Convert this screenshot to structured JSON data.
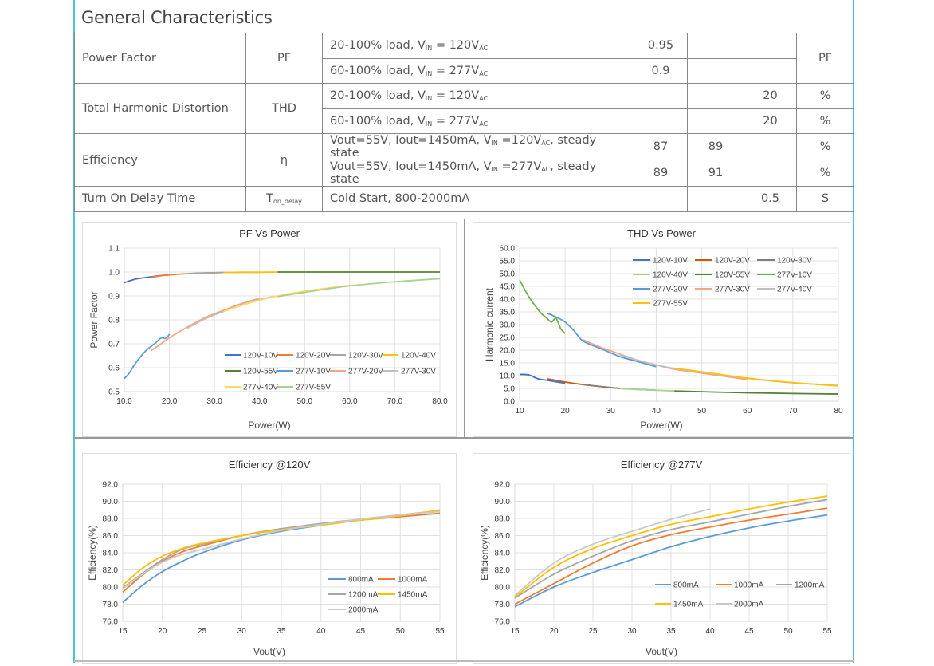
{
  "section_title": "General Characteristics",
  "table": {
    "rows": [
      {
        "param": "Power Factor",
        "symbol": "PF",
        "conditions": [
          {
            "pre": "20-100% load, V",
            "sub1": "IN",
            "mid": " = 120V",
            "sub2": "AC",
            "post": "",
            "min": "0.95",
            "typ": "",
            "max": ""
          },
          {
            "pre": "60-100% load, V",
            "sub1": "IN",
            "mid": " = 277V",
            "sub2": "AC",
            "post": "",
            "min": "0.9",
            "typ": "",
            "max": ""
          }
        ],
        "unit": "PF"
      },
      {
        "param": "Total Harmonic Distortion",
        "symbol": "THD",
        "conditions": [
          {
            "pre": "20-100% load, V",
            "sub1": "IN",
            "mid": " = 120V",
            "sub2": "AC",
            "post": "",
            "min": "",
            "typ": "",
            "max": "20",
            "unit": "%"
          },
          {
            "pre": "60-100% load, V",
            "sub1": "IN",
            "mid": " = 277V",
            "sub2": "AC",
            "post": "",
            "min": "",
            "typ": "",
            "max": "20",
            "unit": "%"
          }
        ]
      },
      {
        "param": "Efficiency",
        "symbol": "η",
        "conditions": [
          {
            "pre": "Vout=55V, Iout=1450mA, V",
            "sub1": "IN",
            "mid": " =120V",
            "sub2": "AC",
            "post": ", steady state",
            "min": "87",
            "typ": "89",
            "max": "",
            "unit": "%"
          },
          {
            "pre": "Vout=55V, Iout=1450mA, V",
            "sub1": "IN",
            "mid": " =277V",
            "sub2": "AC",
            "post": ", steady state",
            "min": "89",
            "typ": "91",
            "max": "",
            "unit": "%"
          }
        ]
      },
      {
        "param": "Turn On Delay Time",
        "symbol": "T",
        "symbol_sub": "on_delay",
        "conditions": [
          {
            "pre": "Cold Start, 800-2000mA",
            "sub1": "",
            "mid": "",
            "sub2": "",
            "post": "",
            "min": "",
            "typ": "",
            "max": "0.5",
            "unit": "S"
          }
        ]
      }
    ]
  },
  "chart_data": [
    {
      "type": "line",
      "title": "PF Vs Power",
      "xlabel": "Power(W)",
      "ylabel": "Power Factor",
      "xlim": [
        10,
        80
      ],
      "ylim": [
        0.5,
        1.1
      ],
      "xticks": [
        10,
        20,
        30,
        40,
        50,
        60,
        70,
        80
      ],
      "xtick_fmt": 1,
      "yticks": [
        0.5,
        0.6,
        0.7,
        0.8,
        0.9,
        1.0,
        1.1
      ],
      "ytick_fmt": 1,
      "grid": true,
      "legend": "bottom-right",
      "legend_cols": 4,
      "series": [
        {
          "name": "120V-10V",
          "color": "#4472c4",
          "x": [
            10,
            12,
            14,
            16,
            18,
            20
          ],
          "y": [
            0.955,
            0.968,
            0.975,
            0.98,
            0.985,
            0.988
          ]
        },
        {
          "name": "120V-20V",
          "color": "#ed7d31",
          "x": [
            16,
            18,
            20,
            24,
            28,
            32
          ],
          "y": [
            0.978,
            0.984,
            0.988,
            0.993,
            0.996,
            0.998
          ]
        },
        {
          "name": "120V-30V",
          "color": "#a5a5a5",
          "x": [
            24,
            28,
            32,
            36,
            40
          ],
          "y": [
            0.993,
            0.996,
            0.998,
            0.999,
            0.999
          ]
        },
        {
          "name": "120V-40V",
          "color": "#ffc000",
          "x": [
            32,
            36,
            40,
            44
          ],
          "y": [
            0.998,
            0.999,
            0.999,
            1.0
          ]
        },
        {
          "name": "120V-55V",
          "color": "#548235",
          "x": [
            44,
            50,
            60,
            70,
            80
          ],
          "y": [
            1.0,
            1.0,
            1.0,
            1.0,
            1.0
          ]
        },
        {
          "name": "277V-10V",
          "color": "#5b9bd5",
          "x": [
            10,
            11,
            12,
            13,
            14,
            15,
            16,
            17,
            18,
            18.5,
            19,
            19.5,
            20
          ],
          "y": [
            0.555,
            0.575,
            0.605,
            0.632,
            0.655,
            0.675,
            0.69,
            0.705,
            0.722,
            0.725,
            0.722,
            0.728,
            0.74
          ]
        },
        {
          "name": "277V-20V",
          "color": "#f4a582",
          "x": [
            16,
            18,
            20,
            24,
            28,
            32,
            36,
            40
          ],
          "y": [
            0.672,
            0.698,
            0.725,
            0.77,
            0.81,
            0.84,
            0.868,
            0.89
          ]
        },
        {
          "name": "277V-30V",
          "color": "#bfbfbf",
          "x": [
            24,
            28,
            32,
            36,
            40,
            44
          ],
          "y": [
            0.765,
            0.805,
            0.835,
            0.862,
            0.885,
            0.9
          ]
        },
        {
          "name": "277V-40V",
          "color": "#ffd966",
          "x": [
            32,
            36,
            40,
            44,
            50,
            56,
            60
          ],
          "y": [
            0.835,
            0.86,
            0.882,
            0.9,
            0.92,
            0.935,
            0.945
          ]
        },
        {
          "name": "277V-55V",
          "color": "#a9d18e",
          "x": [
            44,
            50,
            56,
            60,
            66,
            72,
            80
          ],
          "y": [
            0.897,
            0.915,
            0.932,
            0.942,
            0.953,
            0.962,
            0.972
          ]
        }
      ]
    },
    {
      "type": "line",
      "title": "THD Vs Power",
      "xlabel": "Power(W)",
      "ylabel": "Harmonic current",
      "xlim": [
        10,
        80
      ],
      "ylim": [
        0,
        60
      ],
      "xticks": [
        10,
        20,
        30,
        40,
        50,
        60,
        70,
        80
      ],
      "xtick_fmt": 0,
      "yticks": [
        0,
        5,
        10,
        15,
        20,
        25,
        30,
        35,
        40,
        45,
        50,
        55,
        60
      ],
      "ytick_fmt": 1,
      "grid": true,
      "legend": "top-right",
      "legend_cols": 3,
      "series": [
        {
          "name": "120V-10V",
          "color": "#4472c4",
          "x": [
            10,
            12,
            14,
            16,
            18,
            20
          ],
          "y": [
            10.5,
            10.3,
            8.8,
            8.2,
            7.6,
            7.0
          ]
        },
        {
          "name": "120V-20V",
          "color": "#c55a11",
          "x": [
            16,
            18,
            20,
            24,
            28,
            32
          ],
          "y": [
            8.8,
            8.2,
            7.5,
            6.5,
            5.7,
            5.0
          ]
        },
        {
          "name": "120V-30V",
          "color": "#7f7f7f",
          "x": [
            24,
            28,
            32,
            36,
            40
          ],
          "y": [
            6.5,
            5.7,
            5.0,
            4.6,
            4.3
          ]
        },
        {
          "name": "120V-40V",
          "color": "#a9d18e",
          "x": [
            32,
            36,
            40,
            44
          ],
          "y": [
            5.0,
            4.6,
            4.3,
            4.0
          ]
        },
        {
          "name": "120V-55V",
          "color": "#548235",
          "x": [
            44,
            50,
            60,
            70,
            80
          ],
          "y": [
            4.0,
            3.7,
            3.3,
            3.0,
            2.8
          ]
        },
        {
          "name": "277V-10V",
          "color": "#70ad47",
          "x": [
            10,
            12,
            14,
            15,
            16,
            17,
            18,
            19,
            20
          ],
          "y": [
            47.5,
            41,
            36,
            34,
            32.5,
            31,
            32.5,
            28.5,
            26.5
          ]
        },
        {
          "name": "277V-20V",
          "color": "#5b9bd5",
          "x": [
            16,
            18,
            20,
            22,
            24,
            28,
            32,
            36,
            40
          ],
          "y": [
            34.5,
            33,
            31,
            27.5,
            23.5,
            20.5,
            17.5,
            15.5,
            13.5
          ]
        },
        {
          "name": "277V-30V",
          "color": "#f4a582",
          "x": [
            24,
            28,
            32,
            36,
            40,
            44,
            50,
            56,
            60
          ],
          "y": [
            24,
            21,
            18.5,
            16,
            14.2,
            12.5,
            11,
            9.5,
            8.5
          ]
        },
        {
          "name": "277V-40V",
          "color": "#bfbfbf",
          "x": [
            32,
            36,
            40,
            44,
            50,
            60,
            70,
            80
          ],
          "y": [
            18.2,
            16,
            14.2,
            12.8,
            11.3,
            9.0,
            7.2,
            6.2
          ]
        },
        {
          "name": "277V-55V",
          "color": "#ffc000",
          "x": [
            44,
            50,
            56,
            60,
            66,
            72,
            80
          ],
          "y": [
            12.9,
            11.5,
            10,
            9.0,
            7.9,
            7.0,
            6.0
          ]
        }
      ]
    },
    {
      "type": "line",
      "title": "Efficiency @120V",
      "xlabel": "Vout(V)",
      "ylabel": "Efficiency(%)",
      "xlim": [
        15,
        55
      ],
      "ylim": [
        76,
        92
      ],
      "xticks": [
        15,
        20,
        25,
        30,
        35,
        40,
        45,
        50,
        55
      ],
      "xtick_fmt": 0,
      "yticks": [
        76,
        78,
        80,
        82,
        84,
        86,
        88,
        90,
        92
      ],
      "ytick_fmt": 1,
      "grid": true,
      "legend": "bottom-right",
      "legend_cols": 2,
      "series": [
        {
          "name": "800mA",
          "color": "#5b9bd5",
          "x": [
            15,
            17.5,
            20,
            22.5,
            25,
            30,
            35,
            40,
            45,
            50,
            55
          ],
          "y": [
            78.2,
            80.2,
            81.8,
            83.0,
            84.0,
            85.5,
            86.5,
            87.2,
            87.9,
            88.4,
            88.9
          ]
        },
        {
          "name": "1000mA",
          "color": "#ed7d31",
          "x": [
            15,
            17.5,
            20,
            22.5,
            25,
            30,
            35,
            40,
            45,
            50,
            55
          ],
          "y": [
            79.4,
            81.4,
            83.0,
            84.1,
            84.8,
            86.0,
            86.8,
            87.3,
            87.8,
            88.2,
            88.6
          ]
        },
        {
          "name": "1200mA",
          "color": "#a5a5a5",
          "x": [
            15,
            17.5,
            20,
            22.5,
            25,
            30,
            35,
            40,
            45,
            50,
            55
          ],
          "y": [
            79.9,
            81.6,
            83.2,
            84.4,
            85.0,
            86.0,
            86.8,
            87.4,
            87.9,
            88.4,
            88.9
          ]
        },
        {
          "name": "1450mA",
          "color": "#ffc000",
          "x": [
            15,
            17.5,
            20,
            22.5,
            25,
            30,
            35,
            40,
            45,
            50,
            55
          ],
          "y": [
            80.2,
            82.2,
            83.6,
            84.5,
            85.1,
            86.0,
            86.7,
            87.2,
            87.8,
            88.3,
            89.0
          ]
        },
        {
          "name": "2000mA",
          "color": "#c9c9c9",
          "x": [
            15,
            17.5,
            20,
            22.5,
            25,
            30,
            35,
            40,
            45,
            50,
            55
          ],
          "y": [
            79.8,
            81.5,
            82.9,
            83.8,
            84.4,
            85.6,
            86.6,
            87.3,
            87.9,
            88.4,
            88.8
          ]
        }
      ]
    },
    {
      "type": "line",
      "title": "Efficiency @277V",
      "xlabel": "Vout(V)",
      "ylabel": "Efficiency(%)",
      "xlim": [
        15,
        55
      ],
      "ylim": [
        76,
        92
      ],
      "xticks": [
        15,
        20,
        25,
        30,
        35,
        40,
        45,
        50,
        55
      ],
      "xtick_fmt": 0,
      "yticks": [
        76,
        78,
        80,
        82,
        84,
        86,
        88,
        90,
        92
      ],
      "ytick_fmt": 1,
      "grid": true,
      "legend": "bottom-right",
      "legend_cols": 3,
      "series": [
        {
          "name": "800mA",
          "color": "#5b9bd5",
          "x": [
            15,
            20,
            25,
            30,
            35,
            40,
            45,
            50,
            55
          ],
          "y": [
            77.7,
            80.0,
            81.7,
            83.2,
            84.7,
            85.9,
            86.9,
            87.7,
            88.4
          ]
        },
        {
          "name": "1000mA",
          "color": "#ed7d31",
          "x": [
            15,
            20,
            25,
            30,
            35,
            40,
            45,
            50,
            55
          ],
          "y": [
            78.0,
            80.4,
            82.8,
            84.8,
            86.1,
            87.0,
            87.8,
            88.5,
            89.2
          ]
        },
        {
          "name": "1200mA",
          "color": "#a5a5a5",
          "x": [
            15,
            20,
            25,
            30,
            35,
            40,
            45,
            50,
            55
          ],
          "y": [
            78.7,
            81.5,
            83.6,
            85.4,
            86.7,
            87.6,
            88.5,
            89.4,
            90.2
          ]
        },
        {
          "name": "1450mA",
          "color": "#ffc000",
          "x": [
            15,
            20,
            25,
            30,
            35,
            40,
            45,
            50,
            55
          ],
          "y": [
            78.8,
            82.3,
            84.5,
            86.0,
            87.3,
            88.2,
            89.1,
            89.9,
            90.6
          ]
        },
        {
          "name": "2000mA",
          "color": "#c9c9c9",
          "x": [
            15,
            20,
            25,
            30,
            35,
            40
          ],
          "y": [
            79.0,
            82.8,
            85.0,
            86.5,
            87.9,
            89.1
          ]
        }
      ]
    }
  ]
}
